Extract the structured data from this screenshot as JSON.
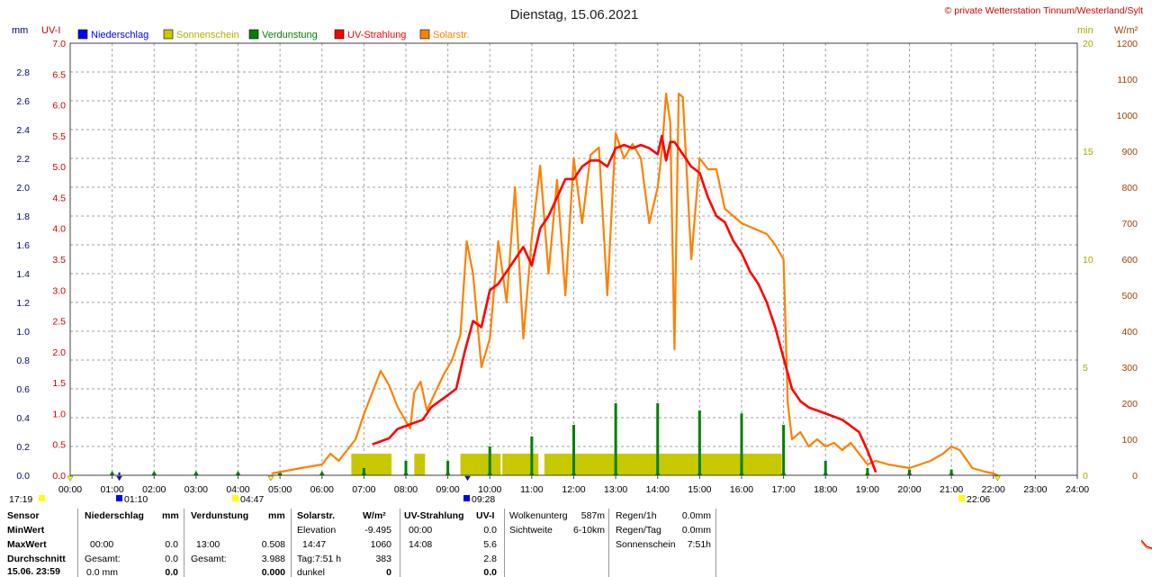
{
  "title": "Dienstag, 15.06.2021",
  "copyright": "© private Wetterstation Tinnum/Westerland/Sylt",
  "axes": {
    "left_unit_mm": "mm",
    "left_unit_uvi": "UV-I",
    "right_unit_min": "min",
    "right_unit_wm2": "W/m²",
    "mm_ticks": [
      "0.0",
      "0.2",
      "0.4",
      "0.6",
      "0.8",
      "1.0",
      "1.2",
      "1.4",
      "1.6",
      "1.8",
      "2.0",
      "2.2",
      "2.4",
      "2.6",
      "2.8"
    ],
    "uvi_ticks": [
      "0.0",
      "0.5",
      "1.0",
      "1.5",
      "2.0",
      "2.5",
      "3.0",
      "3.5",
      "4.0",
      "4.5",
      "5.0",
      "5.5",
      "6.0",
      "6.5",
      "7.0"
    ],
    "min_ticks": [
      "0",
      "5",
      "10",
      "15",
      "20"
    ],
    "wm2_ticks": [
      "0",
      "100",
      "200",
      "300",
      "400",
      "500",
      "600",
      "700",
      "800",
      "900",
      "1000",
      "1100",
      "1200"
    ],
    "time_ticks": [
      "00:00",
      "01:00",
      "02:00",
      "03:00",
      "04:00",
      "05:00",
      "06:00",
      "07:00",
      "08:00",
      "09:00",
      "10:00",
      "11:00",
      "12:00",
      "13:00",
      "14:00",
      "15:00",
      "16:00",
      "17:00",
      "18:00",
      "19:00",
      "20:00",
      "21:00",
      "22:00",
      "23:00",
      "24:00"
    ]
  },
  "markers": {
    "m1": "17:19",
    "m2": "01:10",
    "m3": "04:47",
    "m4": "09:28",
    "m5": "22:06"
  },
  "chart_data": {
    "type": "line",
    "x_unit": "hour of day",
    "xlim": [
      0,
      24
    ],
    "legend": [
      "Niederschlag",
      "Sonnenschein",
      "Verdunstung",
      "UV-Strahlung",
      "Solarstr."
    ],
    "legend_colors": [
      "#0000ff",
      "#c8c800",
      "#008000",
      "#ff0000",
      "#ff8000"
    ],
    "legend_placement": "top-left",
    "grid": true,
    "series": [
      {
        "name": "Solarstr.",
        "axis": "W/m²",
        "ylim": [
          0,
          1200
        ],
        "color": "#ff8000",
        "x": [
          4.8,
          5.5,
          6.0,
          6.2,
          6.4,
          6.6,
          6.8,
          7.0,
          7.2,
          7.4,
          7.6,
          7.8,
          8.0,
          8.1,
          8.2,
          8.35,
          8.5,
          8.7,
          8.9,
          9.1,
          9.3,
          9.45,
          9.6,
          9.8,
          10.0,
          10.2,
          10.4,
          10.6,
          10.8,
          11.0,
          11.2,
          11.4,
          11.6,
          11.8,
          12.0,
          12.2,
          12.4,
          12.6,
          12.8,
          13.0,
          13.2,
          13.4,
          13.6,
          13.8,
          14.0,
          14.1,
          14.2,
          14.3,
          14.4,
          14.5,
          14.6,
          14.8,
          15.0,
          15.2,
          15.4,
          15.6,
          15.8,
          16.0,
          16.2,
          16.4,
          16.6,
          16.8,
          17.0,
          17.1,
          17.2,
          17.4,
          17.6,
          17.8,
          18.0,
          18.2,
          18.4,
          18.6,
          18.8,
          19.0,
          19.2,
          19.5,
          20.0,
          20.5,
          20.8,
          21.0,
          21.2,
          21.5,
          21.8,
          22.0,
          22.1
        ],
        "y": [
          5,
          20,
          30,
          60,
          40,
          70,
          100,
          170,
          230,
          290,
          250,
          190,
          150,
          130,
          230,
          260,
          180,
          230,
          280,
          320,
          390,
          650,
          560,
          300,
          380,
          650,
          480,
          800,
          380,
          660,
          860,
          560,
          820,
          500,
          880,
          700,
          890,
          910,
          500,
          950,
          880,
          920,
          880,
          700,
          800,
          900,
          1060,
          980,
          350,
          1060,
          1050,
          600,
          880,
          850,
          850,
          740,
          720,
          700,
          690,
          680,
          670,
          640,
          600,
          200,
          100,
          120,
          80,
          100,
          80,
          90,
          70,
          90,
          60,
          30,
          40,
          30,
          20,
          40,
          60,
          80,
          70,
          20,
          10,
          5,
          0
        ]
      },
      {
        "name": "UV-Strahlung",
        "axis": "UV-I",
        "ylim": [
          0,
          7
        ],
        "color": "#ff0000",
        "x": [
          7.2,
          7.4,
          7.6,
          7.8,
          8.0,
          8.2,
          8.4,
          8.6,
          8.8,
          9.0,
          9.2,
          9.4,
          9.6,
          9.8,
          10.0,
          10.2,
          10.4,
          10.6,
          10.8,
          11.0,
          11.2,
          11.4,
          11.6,
          11.8,
          12.0,
          12.2,
          12.4,
          12.6,
          12.8,
          13.0,
          13.2,
          13.4,
          13.6,
          13.8,
          14.0,
          14.1,
          14.2,
          14.3,
          14.4,
          14.6,
          14.8,
          15.0,
          15.2,
          15.4,
          15.6,
          15.8,
          16.0,
          16.2,
          16.4,
          16.6,
          16.8,
          17.0,
          17.2,
          17.4,
          17.6,
          17.8,
          18.0,
          18.2,
          18.4,
          18.6,
          18.8,
          19.0,
          19.2
        ],
        "y": [
          0.5,
          0.55,
          0.6,
          0.75,
          0.8,
          0.85,
          0.9,
          1.1,
          1.2,
          1.3,
          1.4,
          2.0,
          2.5,
          2.4,
          3.0,
          3.1,
          3.3,
          3.5,
          3.7,
          3.4,
          4.0,
          4.2,
          4.5,
          4.8,
          4.8,
          5.0,
          5.1,
          5.1,
          5.0,
          5.3,
          5.35,
          5.3,
          5.35,
          5.3,
          5.2,
          5.5,
          5.1,
          5.4,
          5.4,
          5.2,
          5.0,
          4.9,
          4.5,
          4.2,
          4.1,
          3.8,
          3.6,
          3.3,
          3.1,
          2.8,
          2.4,
          1.9,
          1.4,
          1.2,
          1.1,
          1.05,
          1.0,
          0.95,
          0.9,
          0.8,
          0.7,
          0.4,
          0.05
        ]
      },
      {
        "name": "Sonnenschein",
        "axis": "min",
        "ylim": [
          0,
          20
        ],
        "color": "#c8c800",
        "segments": [
          [
            6.7,
            7.7
          ],
          [
            8.2,
            8.5
          ],
          [
            9.3,
            10.3
          ],
          [
            10.3,
            11.2
          ],
          [
            11.3,
            17.0
          ]
        ],
        "value": 1
      },
      {
        "name": "Verdunstung",
        "axis": "mm",
        "ylim": [
          0,
          3
        ],
        "color": "#008000",
        "x": [
          1,
          2,
          3,
          4,
          5,
          6,
          7,
          8,
          9,
          10,
          11,
          12,
          13,
          14,
          15,
          16,
          17,
          18,
          19,
          20,
          21
        ],
        "y": [
          0.01,
          0.01,
          0.01,
          0.01,
          0.01,
          0.01,
          0.05,
          0.1,
          0.1,
          0.2,
          0.27,
          0.35,
          0.5,
          0.5,
          0.45,
          0.43,
          0.35,
          0.1,
          0.05,
          0.04,
          0.04
        ]
      },
      {
        "name": "Niederschlag",
        "axis": "mm",
        "ylim": [
          0,
          3
        ],
        "color": "#0000ff",
        "x": [
          1.17
        ],
        "y": [
          0.02
        ]
      }
    ]
  },
  "footer": {
    "sensor": {
      "h": "Sensor",
      "min": "MinWert",
      "max": "MaxWert",
      "avg": "Durchschnitt",
      "date": "15.06. 23:59"
    },
    "niederschlag": {
      "h": "Niederschlag",
      "u": "mm",
      "min": "",
      "max_t": "00:00",
      "max_v": "0.0",
      "g_l": "Gesamt:",
      "g_v": "0.0",
      "n_l": "0.0 mm",
      "n_v": "0.0"
    },
    "verdunstung": {
      "h": "Verdunstung",
      "u": "mm",
      "max_t": "13:00",
      "max_v": "0.508",
      "g_l": "Gesamt:",
      "g_v": "3.988",
      "n_v": "0.000"
    },
    "solar": {
      "h": "Solarstr.",
      "u": "W/m²",
      "e_l": "Elevation",
      "e_v": "-9.495",
      "max_t": "14:47",
      "max_v": "1060",
      "t_l": "Tag:7:51 h",
      "t_v": "383",
      "d_l": "dunkel",
      "d_v": "0"
    },
    "uv": {
      "h": "UV-Strahlung",
      "u": "UV-I",
      "min_t": "00:00",
      "min_v": "0.0",
      "max_t": "14:08",
      "max_v": "5.6",
      "avg_v": "2.8",
      "n_v": "0.0"
    },
    "wolken": {
      "l1": "Wolkenunterg",
      "v1": "587m",
      "l2": "Sichtweite",
      "v2": "6-10km"
    },
    "regen": {
      "l1": "Regen/1h",
      "v1": "0.0mm",
      "l2": "Regen/Tag",
      "v2": "0.0mm",
      "l3": "Sonnenschein",
      "v3": "7:51h"
    }
  }
}
